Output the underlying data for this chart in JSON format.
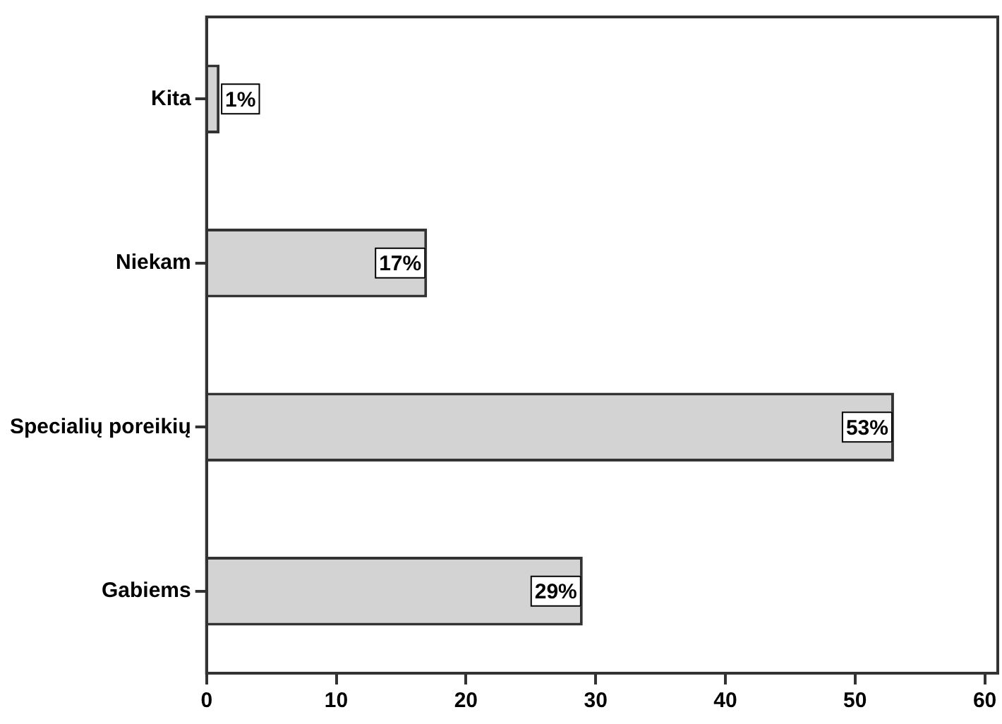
{
  "chart_data": {
    "type": "bar",
    "orientation": "horizontal",
    "categories": [
      "Kita",
      "Niekam",
      "Specialių poreikių",
      "Gabiems"
    ],
    "values": [
      1,
      17,
      53,
      29
    ],
    "value_labels": [
      "1%",
      "17%",
      "53%",
      "29%"
    ],
    "color": "#d3d3d3",
    "xlim": [
      0,
      61
    ],
    "xticks": [
      0,
      10,
      20,
      30,
      40,
      50,
      60
    ],
    "grid": false,
    "legend": false
  }
}
